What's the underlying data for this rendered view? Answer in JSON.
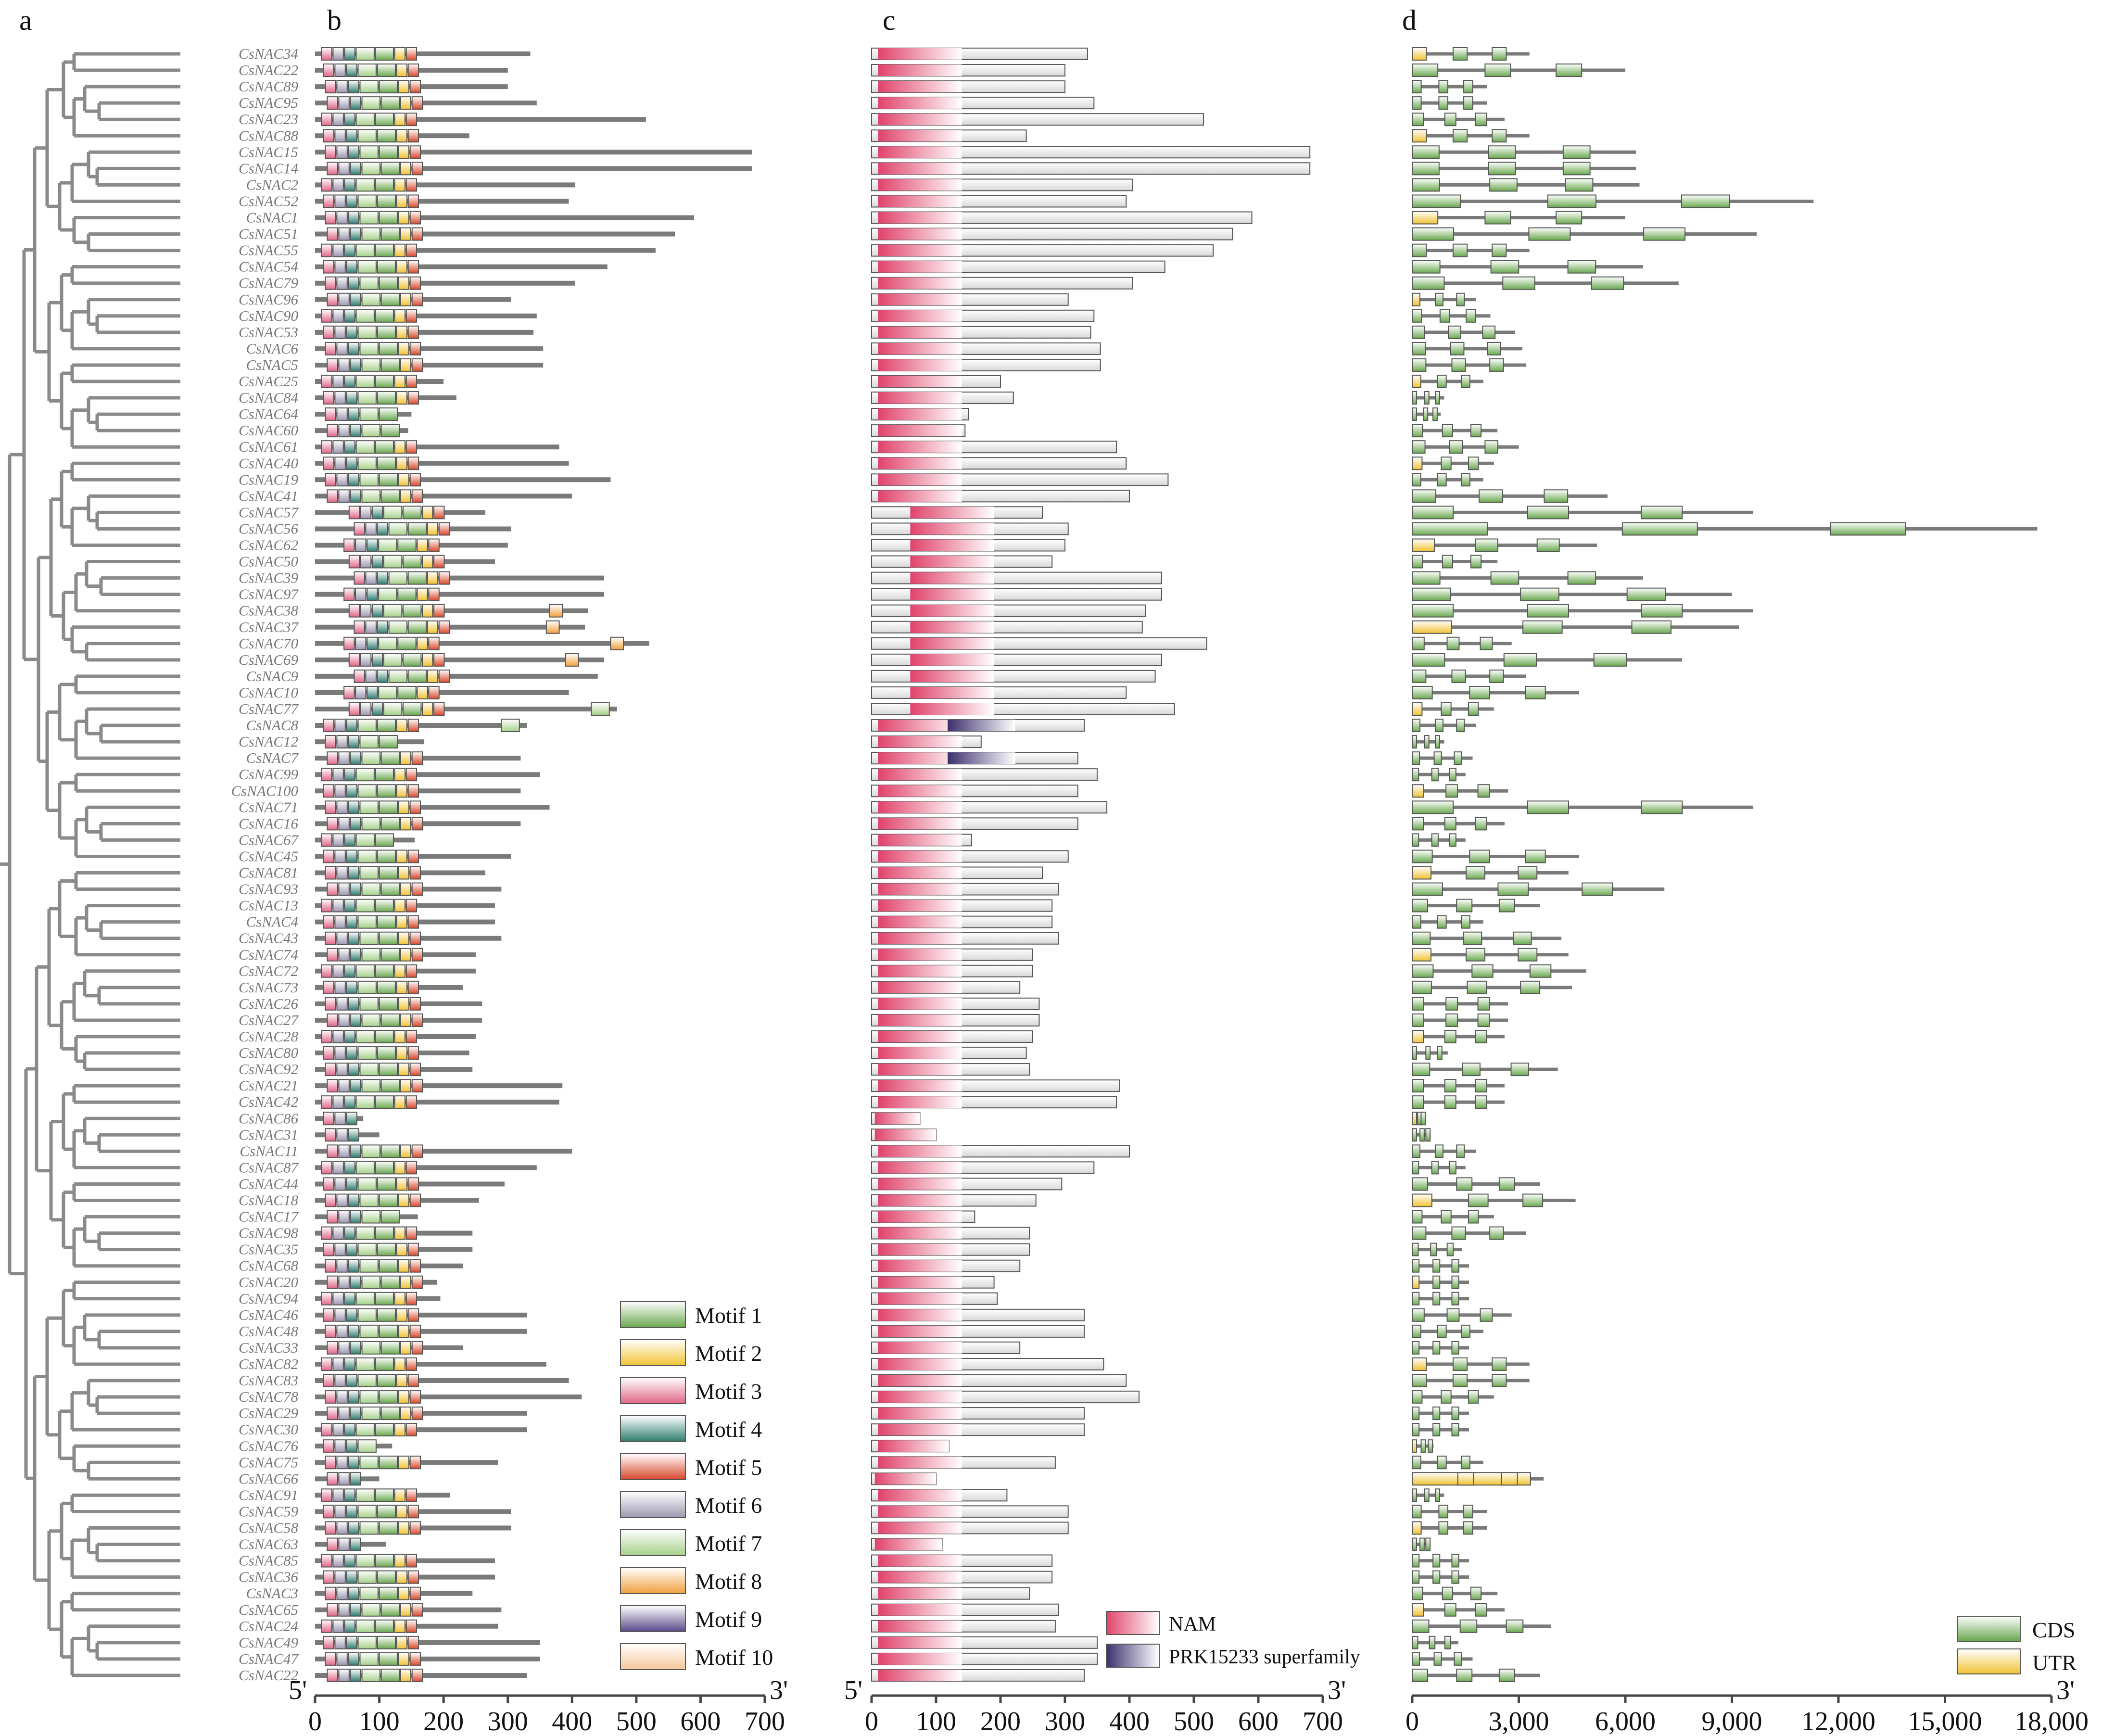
{
  "panels": {
    "a": "a",
    "b": "b",
    "c": "c",
    "d": "d"
  },
  "genes": [
    "CsNAC34",
    "CsNAC22",
    "CsNAC89",
    "CsNAC95",
    "CsNAC23",
    "CsNAC88",
    "CsNAC15",
    "CsNAC14",
    "CsNAC2",
    "CsNAC52",
    "CsNAC1",
    "CsNAC51",
    "CsNAC55",
    "CsNAC54",
    "CsNAC79",
    "CsNAC96",
    "CsNAC90",
    "CsNAC53",
    "CsNAC6",
    "CsNAC5",
    "CsNAC25",
    "CsNAC84",
    "CsNAC64",
    "CsNAC60",
    "CsNAC61",
    "CsNAC40",
    "CsNAC19",
    "CsNAC41",
    "CsNAC57",
    "CsNAC56",
    "CsNAC62",
    "CsNAC50",
    "CsNAC39",
    "CsNAC97",
    "CsNAC38",
    "CsNAC37",
    "CsNAC70",
    "CsNAC69",
    "CsNAC9",
    "CsNAC10",
    "CsNAC77",
    "CsNAC8",
    "CsNAC12",
    "CsNAC7",
    "CsNAC99",
    "CsNAC100",
    "CsNAC71",
    "CsNAC16",
    "CsNAC67",
    "CsNAC45",
    "CsNAC81",
    "CsNAC93",
    "CsNAC13",
    "CsNAC4",
    "CsNAC43",
    "CsNAC74",
    "CsNAC72",
    "CsNAC73",
    "CsNAC26",
    "CsNAC27",
    "CsNAC28",
    "CsNAC80",
    "CsNAC92",
    "CsNAC21",
    "CsNAC42",
    "CsNAC86",
    "CsNAC31",
    "CsNAC11",
    "CsNAC87",
    "CsNAC44",
    "CsNAC18",
    "CsNAC17",
    "CsNAC98",
    "CsNAC35",
    "CsNAC68",
    "CsNAC20",
    "CsNAC94",
    "CsNAC46",
    "CsNAC48",
    "CsNAC33",
    "CsNAC82",
    "CsNAC83",
    "CsNAC78",
    "CsNAC29",
    "CsNAC30",
    "CsNAC76",
    "CsNAC75",
    "CsNAC66",
    "CsNAC91",
    "CsNAC59",
    "CsNAC58",
    "CsNAC63",
    "CsNAC85",
    "CsNAC36",
    "CsNAC3",
    "CsNAC65",
    "CsNAC24",
    "CsNAC49",
    "CsNAC47",
    "CsNAC22"
  ],
  "protein_lengths": [
    335,
    300,
    300,
    345,
    515,
    240,
    680,
    680,
    405,
    395,
    590,
    560,
    530,
    455,
    405,
    305,
    345,
    340,
    355,
    355,
    200,
    220,
    150,
    145,
    380,
    395,
    460,
    400,
    265,
    305,
    300,
    280,
    450,
    450,
    425,
    420,
    520,
    450,
    440,
    395,
    470,
    330,
    170,
    320,
    350,
    320,
    365,
    320,
    155,
    305,
    265,
    290,
    280,
    280,
    290,
    250,
    250,
    230,
    260,
    260,
    250,
    240,
    245,
    385,
    380,
    75,
    100,
    400,
    345,
    295,
    255,
    160,
    245,
    245,
    230,
    190,
    195,
    330,
    330,
    230,
    360,
    395,
    415,
    330,
    330,
    120,
    285,
    100,
    210,
    305,
    305,
    110,
    280,
    280,
    245,
    290,
    285,
    350,
    350,
    330
  ],
  "gene_lengths_kb": [
    3.3,
    6.0,
    2.1,
    2.1,
    2.6,
    3.3,
    6.3,
    6.3,
    6.4,
    11.3,
    6.0,
    9.7,
    3.3,
    6.5,
    7.5,
    1.8,
    2.2,
    2.9,
    3.1,
    3.2,
    2.0,
    0.9,
    0.8,
    2.4,
    3.0,
    2.3,
    2.0,
    5.5,
    9.6,
    17.6,
    5.2,
    2.4,
    6.5,
    9.0,
    9.6,
    9.2,
    2.8,
    7.6,
    3.2,
    4.7,
    2.3,
    1.8,
    0.9,
    1.7,
    1.5,
    2.7,
    9.6,
    2.6,
    1.5,
    4.7,
    4.4,
    7.1,
    3.6,
    2.0,
    4.2,
    4.4,
    4.9,
    4.5,
    2.7,
    2.7,
    2.6,
    1.0,
    4.1,
    2.6,
    2.6,
    0.3,
    0.5,
    1.8,
    1.5,
    3.6,
    4.6,
    2.3,
    3.2,
    1.4,
    1.6,
    1.6,
    1.6,
    2.8,
    2.0,
    1.6,
    3.3,
    3.3,
    2.3,
    1.6,
    1.6,
    0.6,
    2.0,
    3.7,
    0.9,
    2.1,
    2.1,
    0.5,
    1.6,
    1.6,
    2.4,
    2.6,
    3.9,
    1.3,
    1.7,
    3.6
  ],
  "motif_legend": [
    {
      "label": "Motif 1",
      "color": "#6aa84f"
    },
    {
      "label": "Motif 2",
      "color": "#f1c232"
    },
    {
      "label": "Motif 3",
      "color": "#e06687"
    },
    {
      "label": "Motif 4",
      "color": "#2e7d6e"
    },
    {
      "label": "Motif 5",
      "color": "#d9482b"
    },
    {
      "label": "Motif 6",
      "color": "#9c97b0"
    },
    {
      "label": "Motif 7",
      "color": "#a6d18a"
    },
    {
      "label": "Motif 8",
      "color": "#f0a03c"
    },
    {
      "label": "Motif 9",
      "color": "#5a4a8a"
    },
    {
      "label": "Motif 10",
      "color": "#f7c89b"
    }
  ],
  "domain_legend": [
    {
      "label": "NAM",
      "color": "#e0436b"
    },
    {
      "label": "PRK15233 superfamily",
      "color": "#3c2f6e"
    }
  ],
  "structure_legend": [
    {
      "label": "CDS",
      "color": "#6aa84f"
    },
    {
      "label": "UTR",
      "color": "#f1c232"
    }
  ],
  "axis_b": {
    "start": "5'",
    "end": "3'",
    "ticks": [
      "0",
      "100",
      "200",
      "300",
      "400",
      "500",
      "600",
      "700"
    ]
  },
  "axis_c": {
    "start": "5'",
    "end": "3'",
    "ticks": [
      "0",
      "100",
      "200",
      "300",
      "400",
      "500",
      "600",
      "700"
    ]
  },
  "axis_d": {
    "end": "3'",
    "ticks": [
      "0",
      "3,000",
      "6,000",
      "9,000",
      "12,000",
      "15,000",
      "18,000"
    ]
  }
}
